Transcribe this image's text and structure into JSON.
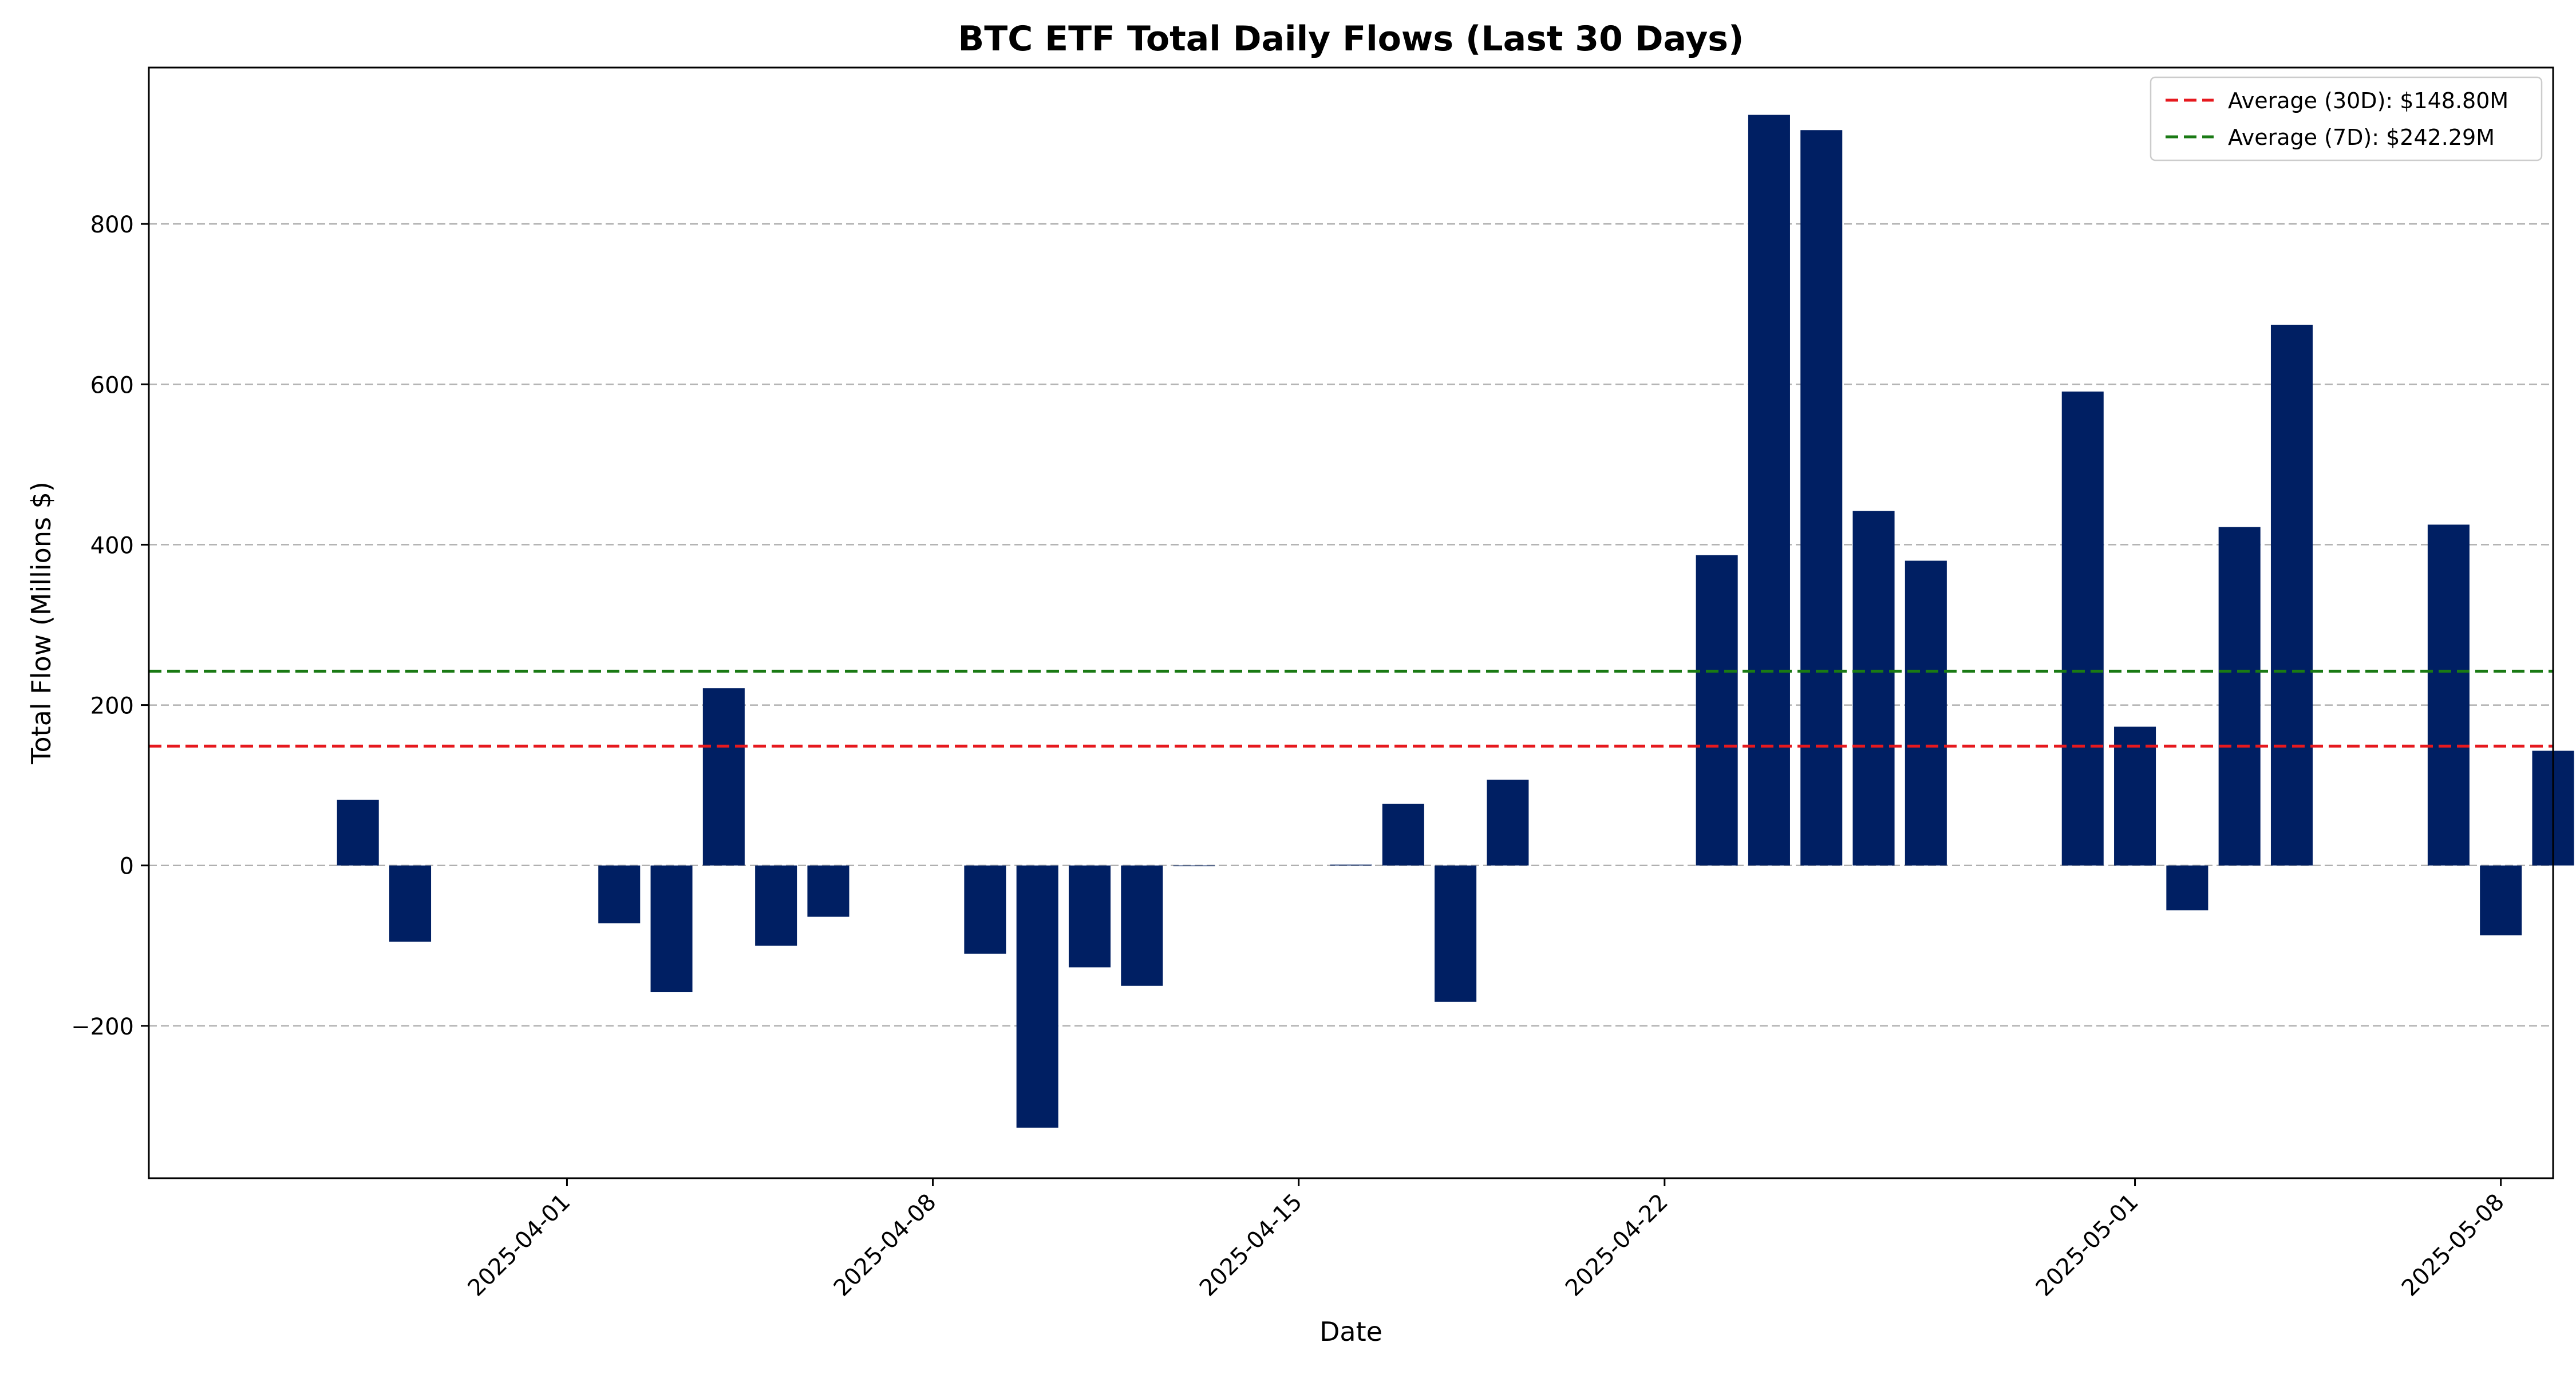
{
  "chart_data": {
    "type": "bar",
    "title": "BTC ETF Total Daily Flows (Last 30 Days)",
    "xlabel": "Date",
    "ylabel": "Total Flow (Millions $)",
    "ylim": [
      -390,
      995
    ],
    "xlim": [
      "2025-03-24",
      "2025-05-09"
    ],
    "grid": "y",
    "legend_position": "top-right",
    "colors": {
      "bar": "#001f63",
      "avg30": "#e6191e",
      "avg7": "#1a7a14",
      "grid": "#b0b0b0"
    },
    "x_ticks": [
      "2025-04-01",
      "2025-04-08",
      "2025-04-15",
      "2025-04-22",
      "2025-05-01",
      "2025-05-08"
    ],
    "y_ticks": [
      -200,
      0,
      200,
      400,
      600,
      800
    ],
    "y_tick_labels": [
      "−200",
      "0",
      "200",
      "400",
      "600",
      "800"
    ],
    "bars": [
      {
        "date": "2025-03-28",
        "value": 82
      },
      {
        "date": "2025-03-29",
        "value": -95
      },
      {
        "date": "2025-04-02",
        "value": -72
      },
      {
        "date": "2025-04-03",
        "value": -158
      },
      {
        "date": "2025-04-04",
        "value": 221
      },
      {
        "date": "2025-04-05",
        "value": -100
      },
      {
        "date": "2025-04-06",
        "value": -64
      },
      {
        "date": "2025-04-09",
        "value": -110
      },
      {
        "date": "2025-04-10",
        "value": -327
      },
      {
        "date": "2025-04-11",
        "value": -127
      },
      {
        "date": "2025-04-12",
        "value": -150
      },
      {
        "date": "2025-04-13",
        "value": -1
      },
      {
        "date": "2025-04-16",
        "value": 1
      },
      {
        "date": "2025-04-17",
        "value": 77
      },
      {
        "date": "2025-04-18",
        "value": -170
      },
      {
        "date": "2025-04-19",
        "value": 107
      },
      {
        "date": "2025-04-23",
        "value": 387
      },
      {
        "date": "2025-04-24",
        "value": 936
      },
      {
        "date": "2025-04-25",
        "value": 917
      },
      {
        "date": "2025-04-26",
        "value": 442
      },
      {
        "date": "2025-04-27",
        "value": 380
      },
      {
        "date": "2025-04-30",
        "value": 591
      },
      {
        "date": "2025-05-01",
        "value": 173
      },
      {
        "date": "2025-05-02",
        "value": -56
      },
      {
        "date": "2025-05-03",
        "value": 422
      },
      {
        "date": "2025-05-04",
        "value": 674
      },
      {
        "date": "2025-05-07",
        "value": 425
      },
      {
        "date": "2025-05-08",
        "value": -87
      },
      {
        "date": "2025-05-09",
        "value": 143
      }
    ],
    "reference_lines": [
      {
        "label": "Average (30D): $148.80M",
        "value": 148.8,
        "color": "#e6191e"
      },
      {
        "label": "Average (7D): $242.29M",
        "value": 242.29,
        "color": "#1a7a14"
      }
    ]
  }
}
